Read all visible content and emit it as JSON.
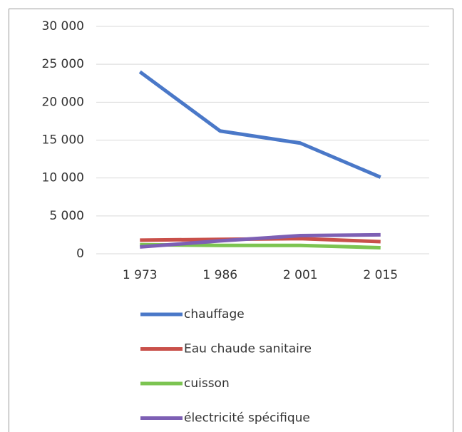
{
  "chart_data": {
    "type": "line",
    "categories": [
      "1 973",
      "1 986",
      "2 001",
      "2 015"
    ],
    "series": [
      {
        "name": "chauffage",
        "color": "#4a78c8",
        "values": [
          24000,
          16200,
          14600,
          10100
        ]
      },
      {
        "name": "Eau chaude sanitaire",
        "color": "#c9504a",
        "values": [
          1800,
          1900,
          2000,
          1600
        ]
      },
      {
        "name": "cuisson",
        "color": "#7cc451",
        "values": [
          1200,
          1100,
          1100,
          800
        ]
      },
      {
        "name": "électricité spécifique",
        "color": "#7d5fb4",
        "values": [
          900,
          1700,
          2400,
          2500
        ]
      }
    ],
    "ylim": [
      0,
      30000
    ],
    "yticks": [
      0,
      {
        "value": 5000,
        "label": "5 000"
      },
      {
        "value": 10000,
        "label": "10 000"
      },
      {
        "value": 15000,
        "label": "15 000"
      },
      {
        "value": 20000,
        "label": "20 000"
      },
      {
        "value": 25000,
        "label": "25 000"
      },
      {
        "value": 30000,
        "label": "30 000"
      }
    ],
    "grid": true,
    "legend": "bottom"
  }
}
